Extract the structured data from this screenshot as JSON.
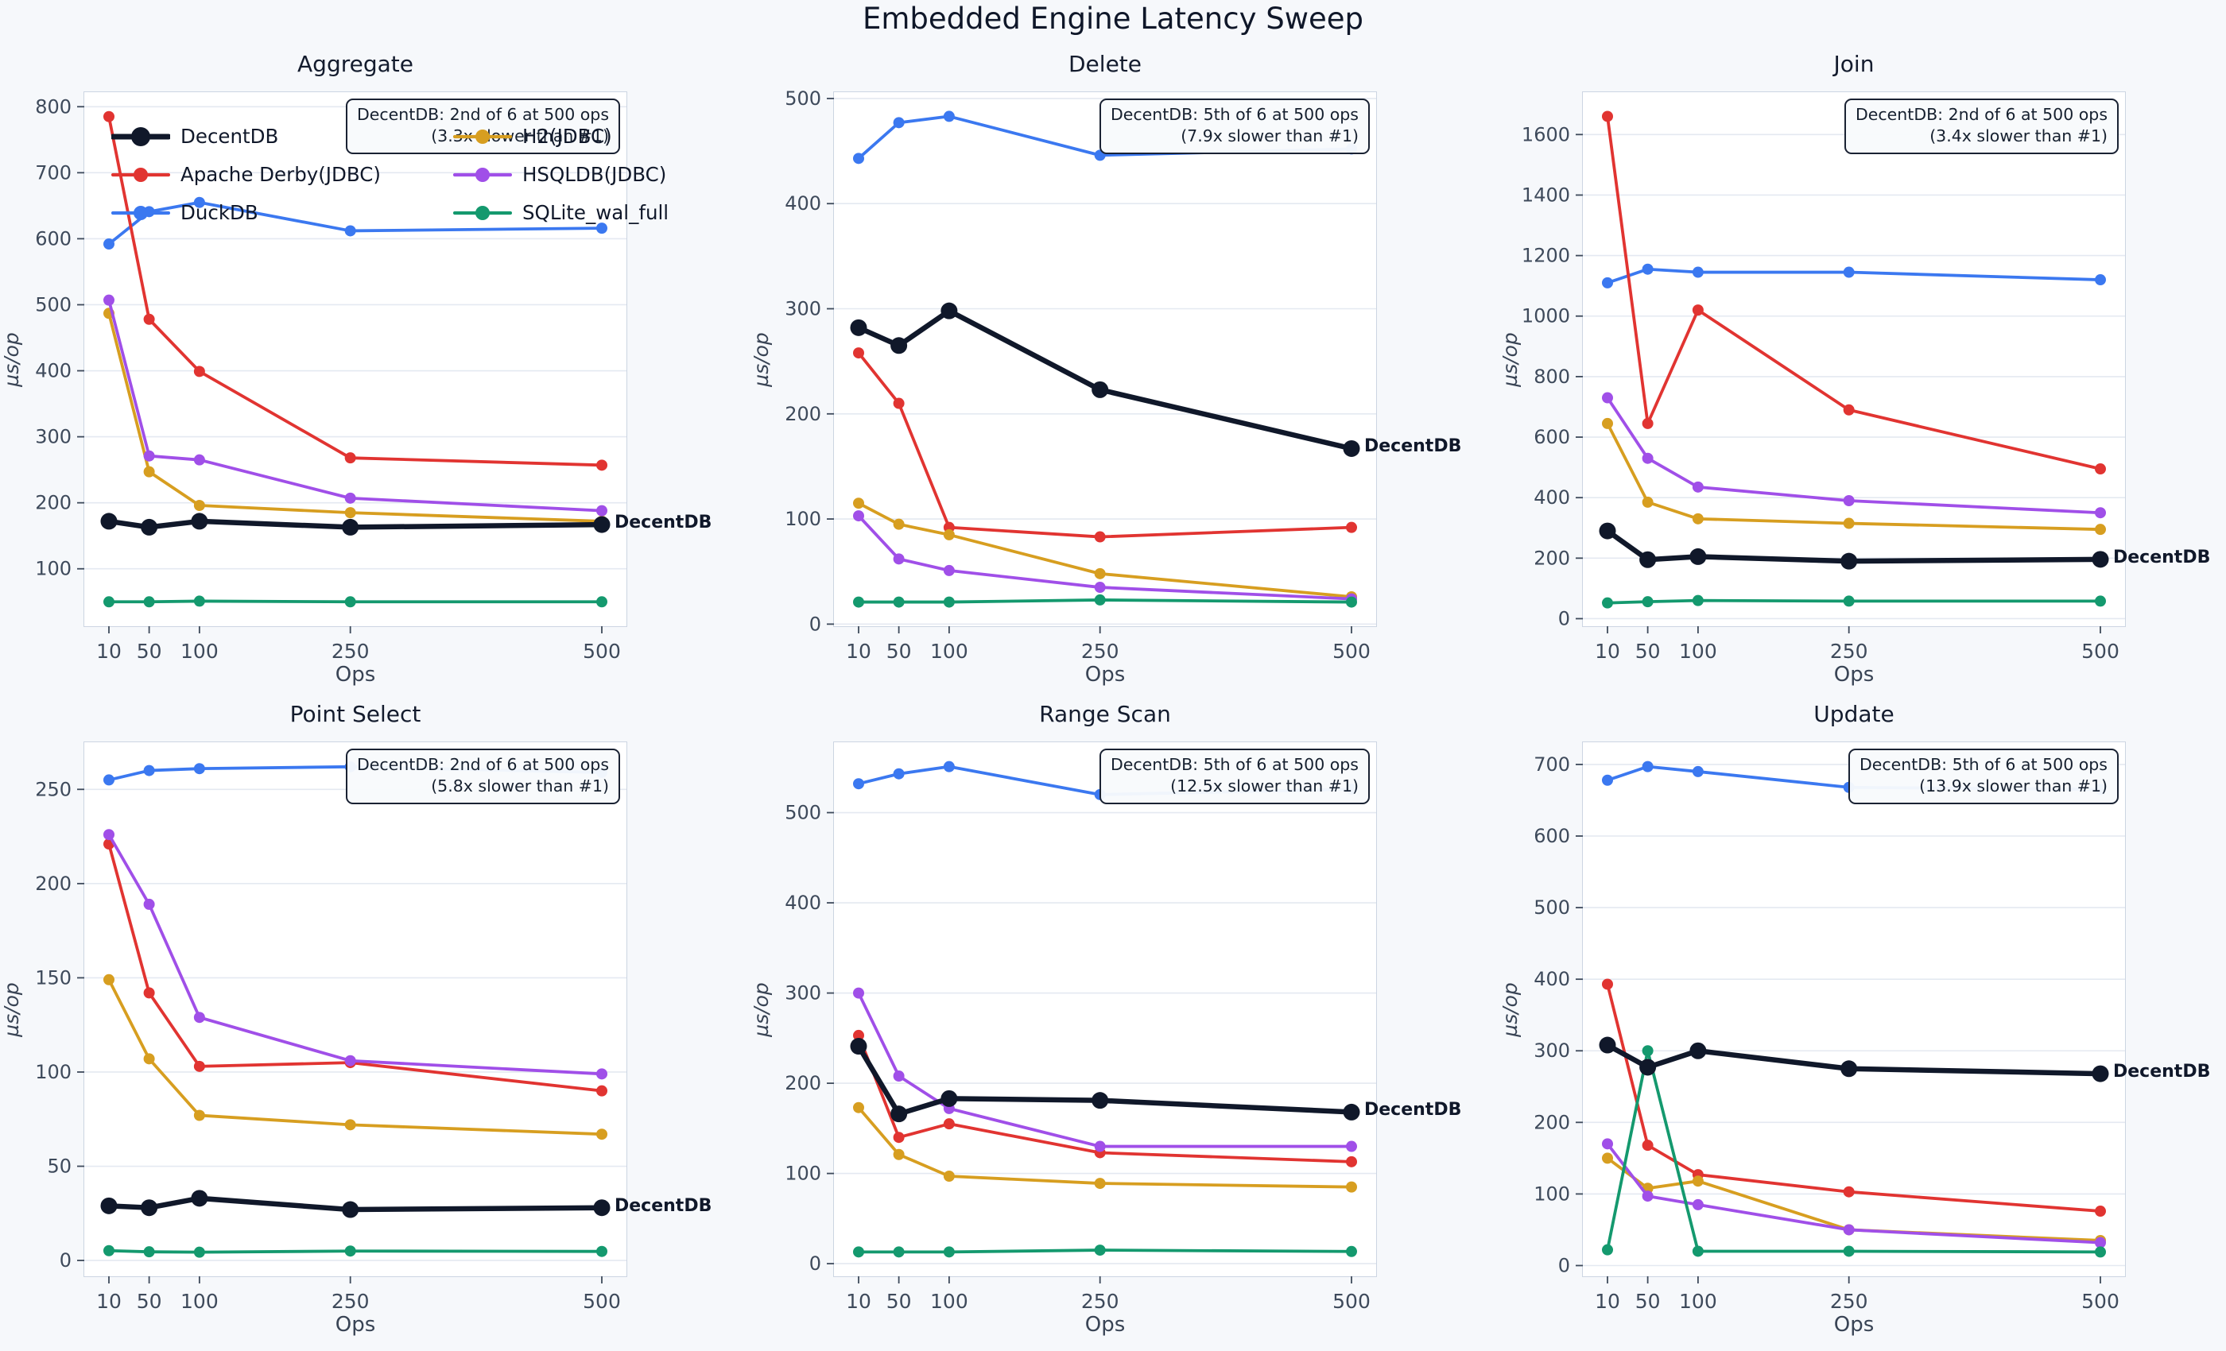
{
  "title": "Embedded Engine Latency Sweep",
  "chart_data": {
    "type": "line",
    "title": "Embedded Engine Latency Sweep",
    "x": [
      10,
      50,
      100,
      250,
      500
    ],
    "xlabel": "Ops",
    "ylabel": "µs/op",
    "end_label": "DecentDB",
    "grid": "horizontal-only",
    "series_names": [
      "DecentDB",
      "Apache Derby(JDBC)",
      "DuckDB",
      "H2(JDBC)",
      "HSQLDB(JDBC)",
      "SQLite_wal_full"
    ],
    "series_colors": {
      "DecentDB": "#10182a",
      "Apache Derby(JDBC)": "#e13431",
      "DuckDB": "#3b78f0",
      "H2(JDBC)": "#d79e20",
      "HSQLDB(JDBC)": "#a04fe8",
      "SQLite_wal_full": "#14996e"
    },
    "emphasis_series": "DecentDB",
    "legend": {
      "location": "upper-left of Aggregate subplot",
      "columns": [
        [
          "DecentDB",
          "Apache Derby(JDBC)",
          "DuckDB"
        ],
        [
          "H2(JDBC)",
          "HSQLDB(JDBC)",
          "SQLite_wal_full"
        ]
      ]
    },
    "subplots": [
      {
        "title": "Aggregate",
        "annotation": {
          "line1": "DecentDB: 2nd of 6 at 500 ops",
          "line2": "(3.3x slower than #1)"
        },
        "ylim": [
          13,
          822
        ],
        "yticks": [
          100,
          200,
          300,
          400,
          500,
          600,
          700,
          800
        ],
        "series": [
          {
            "name": "DecentDB",
            "values": [
              172,
              163,
              172,
              163,
              167
            ]
          },
          {
            "name": "Apache Derby(JDBC)",
            "values": [
              785,
              478,
              399,
              268,
              257
            ]
          },
          {
            "name": "DuckDB",
            "values": [
              592,
              641,
              655,
              612,
              616
            ]
          },
          {
            "name": "H2(JDBC)",
            "values": [
              487,
              247,
              196,
              185,
              172
            ]
          },
          {
            "name": "HSQLDB(JDBC)",
            "values": [
              507,
              271,
              265,
              207,
              188
            ]
          },
          {
            "name": "SQLite_wal_full",
            "values": [
              50,
              50,
              51,
              50,
              50
            ]
          }
        ]
      },
      {
        "title": "Delete",
        "annotation": {
          "line1": "DecentDB: 5th of 6 at 500 ops",
          "line2": "(7.9x slower than #1)"
        },
        "ylim": [
          -2,
          506
        ],
        "yticks": [
          0,
          100,
          200,
          300,
          400,
          500
        ],
        "series": [
          {
            "name": "DecentDB",
            "values": [
              282,
              265,
              298,
              223,
              167
            ]
          },
          {
            "name": "Apache Derby(JDBC)",
            "values": [
              258,
              210,
              92,
              83,
              92
            ]
          },
          {
            "name": "DuckDB",
            "values": [
              443,
              477,
              483,
              446,
              452
            ]
          },
          {
            "name": "H2(JDBC)",
            "values": [
              115,
              95,
              85,
              48,
              26
            ]
          },
          {
            "name": "HSQLDB(JDBC)",
            "values": [
              103,
              62,
              51,
              35,
              24
            ]
          },
          {
            "name": "SQLite_wal_full",
            "values": [
              21,
              21,
              21,
              23,
              21
            ]
          }
        ]
      },
      {
        "title": "Join",
        "annotation": {
          "line1": "DecentDB: 2nd of 6 at 500 ops",
          "line2": "(3.4x slower than #1)"
        },
        "ylim": [
          -25,
          1740
        ],
        "yticks": [
          0,
          200,
          400,
          600,
          800,
          1000,
          1200,
          1400,
          1600
        ],
        "series": [
          {
            "name": "DecentDB",
            "values": [
              290,
              195,
              205,
              190,
              196
            ]
          },
          {
            "name": "Apache Derby(JDBC)",
            "values": [
              1660,
              645,
              1020,
              690,
              495
            ]
          },
          {
            "name": "DuckDB",
            "values": [
              1110,
              1155,
              1145,
              1145,
              1120
            ]
          },
          {
            "name": "H2(JDBC)",
            "values": [
              645,
              385,
              330,
              315,
              295
            ]
          },
          {
            "name": "HSQLDB(JDBC)",
            "values": [
              730,
              530,
              435,
              390,
              350
            ]
          },
          {
            "name": "SQLite_wal_full",
            "values": [
              52,
              56,
              60,
              58,
              58
            ]
          }
        ]
      },
      {
        "title": "Point Select",
        "annotation": {
          "line1": "DecentDB: 2nd of 6 at 500 ops",
          "line2": "(5.8x slower than #1)"
        },
        "ylim": [
          -8.4,
          275
        ],
        "yticks": [
          0,
          50,
          100,
          150,
          200,
          250
        ],
        "series": [
          {
            "name": "DecentDB",
            "values": [
              29,
              28,
              33,
              27,
              28
            ]
          },
          {
            "name": "Apache Derby(JDBC)",
            "values": [
              221,
              142,
              103,
              105,
              90
            ]
          },
          {
            "name": "DuckDB",
            "values": [
              255,
              260,
              261,
              262,
              259
            ]
          },
          {
            "name": "H2(JDBC)",
            "values": [
              149,
              107,
              77,
              72,
              67
            ]
          },
          {
            "name": "HSQLDB(JDBC)",
            "values": [
              226,
              189,
              129,
              106,
              99
            ]
          },
          {
            "name": "SQLite_wal_full",
            "values": [
              5.2,
              4.6,
              4.4,
              5,
              4.8
            ]
          }
        ]
      },
      {
        "title": "Range Scan",
        "annotation": {
          "line1": "DecentDB: 5th of 6 at 500 ops",
          "line2": "(12.5x slower than #1)"
        },
        "ylim": [
          -14,
          578
        ],
        "yticks": [
          0,
          100,
          200,
          300,
          400,
          500
        ],
        "series": [
          {
            "name": "DecentDB",
            "values": [
              241,
              166,
              183,
              181,
              168
            ]
          },
          {
            "name": "Apache Derby(JDBC)",
            "values": [
              253,
              140,
              155,
              123,
              113
            ]
          },
          {
            "name": "DuckDB",
            "values": [
              532,
              543,
              551,
              520,
              526
            ]
          },
          {
            "name": "H2(JDBC)",
            "values": [
              173,
              121,
              97,
              89,
              85
            ]
          },
          {
            "name": "HSQLDB(JDBC)",
            "values": [
              300,
              208,
              172,
              130,
              130
            ]
          },
          {
            "name": "SQLite_wal_full",
            "values": [
              13,
              13,
              13,
              15,
              13.5
            ]
          }
        ]
      },
      {
        "title": "Update",
        "annotation": {
          "line1": "DecentDB: 5th of 6 at 500 ops",
          "line2": "(13.9x slower than #1)"
        },
        "ylim": [
          -15,
          731
        ],
        "yticks": [
          0,
          100,
          200,
          300,
          400,
          500,
          600,
          700
        ],
        "series": [
          {
            "name": "DecentDB",
            "values": [
              308,
              277,
              300,
              275,
              268
            ]
          },
          {
            "name": "Apache Derby(JDBC)",
            "values": [
              393,
              168,
              127,
              103,
              76
            ]
          },
          {
            "name": "DuckDB",
            "values": [
              678,
              697,
              690,
              668,
              665
            ]
          },
          {
            "name": "H2(JDBC)",
            "values": [
              150,
              108,
              118,
              50,
              35
            ]
          },
          {
            "name": "HSQLDB(JDBC)",
            "values": [
              170,
              97,
              85,
              50,
              32
            ]
          },
          {
            "name": "SQLite_wal_full",
            "values": [
              22,
              300,
              20,
              20,
              19
            ]
          }
        ]
      }
    ]
  },
  "style_colors": {
    "figure_background": "#f6f8fb",
    "plot_background": "#ffffff",
    "gridline": "#e4e9f1",
    "spine": "#ccd5e2",
    "tick_label": "#3e4a5b",
    "title_text": "#0f1729",
    "annotation_border": "#1a2233"
  }
}
